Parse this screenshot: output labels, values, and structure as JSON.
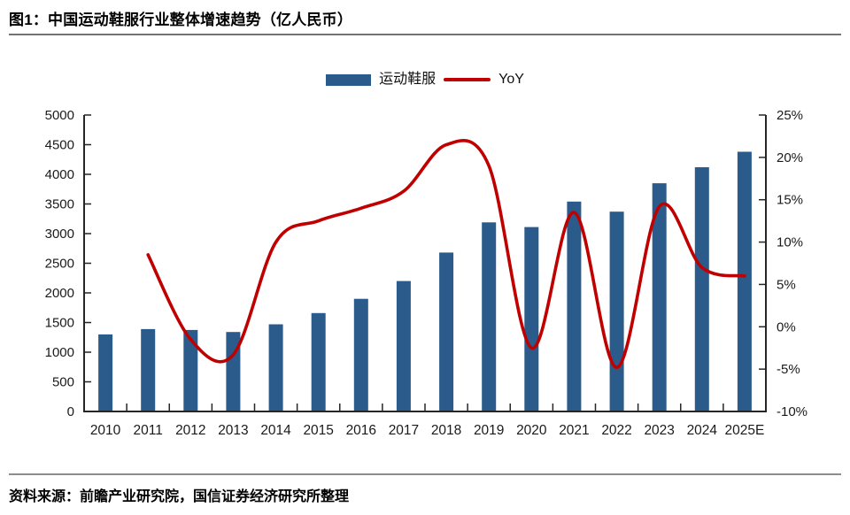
{
  "header": {
    "title": "图1：中国运动鞋服行业整体增速趋势（亿人民币）"
  },
  "legend": {
    "bar_label": "运动鞋服",
    "line_label": "YoY"
  },
  "footer": {
    "source": "资料来源：前瞻产业研究院，国信证券经济研究所整理"
  },
  "colors": {
    "bar": "#2A5B8A",
    "line": "#C00000",
    "axis": "#262626",
    "label": "#1a1a1a"
  },
  "chart_data": {
    "type": "bar",
    "subtype": "bar+line combo",
    "title": "中国运动鞋服行业整体增速趋势（亿人民币）",
    "categories": [
      "2010",
      "2011",
      "2012",
      "2013",
      "2014",
      "2015",
      "2016",
      "2017",
      "2018",
      "2019",
      "2020",
      "2021",
      "2022",
      "2023",
      "2024",
      "2025E"
    ],
    "series": [
      {
        "name": "运动鞋服",
        "type": "bar",
        "axis": "left",
        "values": [
          1300,
          1390,
          1375,
          1340,
          1470,
          1660,
          1900,
          2200,
          2680,
          3190,
          3110,
          3540,
          3370,
          3850,
          4120,
          4380
        ]
      },
      {
        "name": "YoY",
        "type": "line",
        "axis": "right",
        "smooth": true,
        "values": [
          null,
          8.5,
          -1.5,
          -3.3,
          10.0,
          12.5,
          14.0,
          16.0,
          21.5,
          19.0,
          -2.5,
          13.5,
          -4.8,
          14.2,
          7.0,
          6.0
        ]
      }
    ],
    "left_axis": {
      "min": 0,
      "max": 5000,
      "step": 500,
      "tick_labels": [
        "0",
        "500",
        "1000",
        "1500",
        "2000",
        "2500",
        "3000",
        "3500",
        "4000",
        "4500",
        "5000"
      ]
    },
    "right_axis": {
      "min": -10,
      "max": 25,
      "step": 5,
      "tick_labels": [
        "-10%",
        "-5%",
        "0%",
        "5%",
        "10%",
        "15%",
        "20%",
        "25%"
      ]
    },
    "xlabel": "",
    "ylabel": "",
    "grid": false,
    "legend_position": "top-center"
  }
}
